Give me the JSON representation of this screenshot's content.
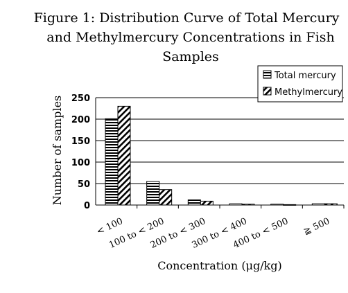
{
  "chart_data": {
    "type": "bar",
    "title_lines": [
      "Figure 1: Distribution Curve of Total Mercury",
      "and Methylmercury Concentrations in Fish",
      "Samples"
    ],
    "xlabel": "Concentration (μg/kg)",
    "ylabel": "Number of samples",
    "categories": [
      "< 100",
      "100 to < 200",
      "200 to < 300",
      "300 to < 400",
      "400 to < 500",
      "≧ 500"
    ],
    "series": [
      {
        "name": "Total mercury",
        "values": [
          201,
          55,
          12,
          3,
          2,
          3
        ],
        "pattern": "horizontal"
      },
      {
        "name": "Methylmercury",
        "values": [
          230,
          36,
          9,
          2,
          1,
          3
        ],
        "pattern": "diagonal"
      }
    ],
    "ylim": [
      0,
      250
    ],
    "yticks": [
      0,
      50,
      100,
      150,
      200,
      250
    ],
    "grid": true,
    "legend_position": "top-right"
  }
}
